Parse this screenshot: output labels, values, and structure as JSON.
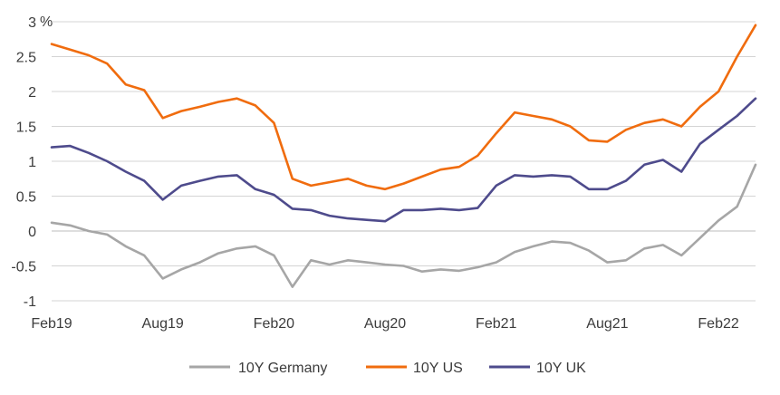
{
  "chart_data": {
    "type": "line",
    "title": "",
    "xlabel": "",
    "ylabel": "",
    "y_unit": "%",
    "ylim": [
      -1,
      3
    ],
    "yticks": [
      -1,
      -0.5,
      0,
      0.5,
      1,
      1.5,
      2,
      2.5,
      3
    ],
    "ytick_labels": [
      "-1",
      "-0.5",
      "0",
      "0.5",
      "1",
      "1.5",
      "2",
      "2.5",
      "3"
    ],
    "xlim": [
      "2019-02",
      "2022-04"
    ],
    "xticks": [
      "2019-02",
      "2019-08",
      "2020-02",
      "2020-08",
      "2021-02",
      "2021-08",
      "2022-02"
    ],
    "xtick_labels": [
      "Feb19",
      "Aug19",
      "Feb20",
      "Aug20",
      "Feb21",
      "Aug21",
      "Feb22"
    ],
    "grid": "horizontal",
    "legend_position": "bottom",
    "x": [
      "2019-02",
      "2019-03",
      "2019-04",
      "2019-05",
      "2019-06",
      "2019-07",
      "2019-08",
      "2019-09",
      "2019-10",
      "2019-11",
      "2019-12",
      "2020-01",
      "2020-02",
      "2020-03",
      "2020-04",
      "2020-05",
      "2020-06",
      "2020-07",
      "2020-08",
      "2020-09",
      "2020-10",
      "2020-11",
      "2020-12",
      "2021-01",
      "2021-02",
      "2021-03",
      "2021-04",
      "2021-05",
      "2021-06",
      "2021-07",
      "2021-08",
      "2021-09",
      "2021-10",
      "2021-11",
      "2021-12",
      "2022-01",
      "2022-02",
      "2022-03",
      "2022-04"
    ],
    "series": [
      {
        "name": "10Y Germany",
        "color": "#a6a6a6",
        "values": [
          0.12,
          0.08,
          0.0,
          -0.05,
          -0.22,
          -0.35,
          -0.68,
          -0.55,
          -0.45,
          -0.32,
          -0.25,
          -0.22,
          -0.35,
          -0.8,
          -0.42,
          -0.48,
          -0.42,
          -0.45,
          -0.48,
          -0.5,
          -0.58,
          -0.55,
          -0.57,
          -0.52,
          -0.45,
          -0.3,
          -0.22,
          -0.15,
          -0.17,
          -0.28,
          -0.45,
          -0.42,
          -0.25,
          -0.2,
          -0.35,
          -0.1,
          0.15,
          0.35,
          0.95
        ]
      },
      {
        "name": "10Y US",
        "color": "#f06c0e",
        "values": [
          2.68,
          2.6,
          2.52,
          2.4,
          2.1,
          2.02,
          1.62,
          1.72,
          1.78,
          1.85,
          1.9,
          1.8,
          1.55,
          0.75,
          0.65,
          0.7,
          0.75,
          0.65,
          0.6,
          0.68,
          0.78,
          0.88,
          0.92,
          1.08,
          1.4,
          1.7,
          1.65,
          1.6,
          1.5,
          1.3,
          1.28,
          1.45,
          1.55,
          1.6,
          1.5,
          1.78,
          2.0,
          2.5,
          2.95
        ]
      },
      {
        "name": "10Y UK",
        "color": "#4e4b8c",
        "values": [
          1.2,
          1.22,
          1.12,
          1.0,
          0.85,
          0.72,
          0.45,
          0.65,
          0.72,
          0.78,
          0.8,
          0.6,
          0.52,
          0.32,
          0.3,
          0.22,
          0.18,
          0.16,
          0.14,
          0.3,
          0.3,
          0.32,
          0.3,
          0.33,
          0.65,
          0.8,
          0.78,
          0.8,
          0.78,
          0.6,
          0.6,
          0.72,
          0.95,
          1.02,
          0.85,
          1.25,
          1.45,
          1.65,
          1.9
        ]
      }
    ]
  }
}
